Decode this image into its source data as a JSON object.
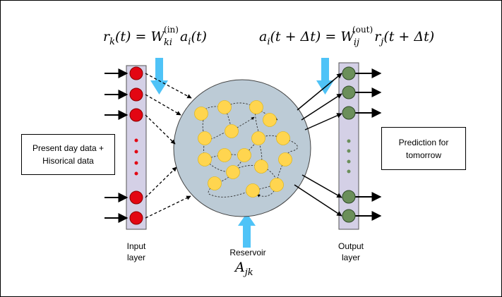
{
  "equations": {
    "input": "r_k(t) = W_ki^(in) a_i(t)",
    "output": "a_i(t + Δt) = W_ij^(out) r_j(t + Δt)"
  },
  "boxes": {
    "input_data_line1": "Present day data +",
    "input_data_line2": "Hisorical data",
    "prediction_line1": "Prediction for",
    "prediction_line2": "tomorrow"
  },
  "labels": {
    "input_layer_line1": "Input",
    "input_layer_line2": "layer",
    "reservoir": "Reservoir",
    "reservoir_symbol": "A_jk",
    "output_layer_line1": "Output",
    "output_layer_line2": "layer"
  },
  "colors": {
    "input_node": "#e30613",
    "output_node": "#6b8f5a",
    "reservoir_node": "#ffd54f",
    "reservoir_fill": "#bccbd6",
    "layer_bar": "#d4d0e6",
    "injection_arrow": "#4fc3f7"
  }
}
